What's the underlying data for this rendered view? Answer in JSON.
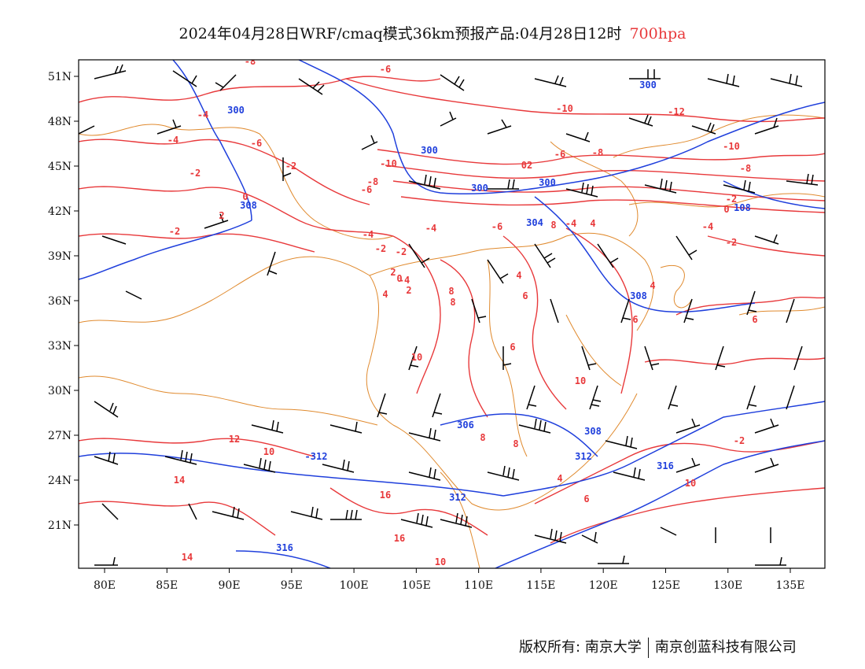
{
  "title": {
    "main": "2024年04月28日WRF/cmaq模式36km预报产品:04月28日12时",
    "level": "700hpa"
  },
  "axes": {
    "lon_labels": [
      "80E",
      "85E",
      "90E",
      "95E",
      "100E",
      "105E",
      "110E",
      "115E",
      "120E",
      "125E",
      "130E",
      "135E"
    ],
    "lat_labels": [
      "51N",
      "48N",
      "45N",
      "42N",
      "39N",
      "36N",
      "33N",
      "30N",
      "27N",
      "24N",
      "21N"
    ]
  },
  "colors": {
    "temperature": "#e8393b",
    "height": "#1f3fdc",
    "border": "#e08a2e",
    "wind": "#000000"
  },
  "height_labels": [
    "300",
    "300",
    "300",
    "300",
    "300",
    "304",
    "308",
    "308",
    "306",
    "308",
    "-312",
    "312",
    "312",
    "316",
    "316",
    "108"
  ],
  "temp_labels": [
    "-8",
    "-6",
    "-4",
    "-4",
    "-6",
    "-2",
    "-2",
    "0",
    "2",
    "-2",
    "-4",
    "-2",
    "-6",
    "-8",
    "-10",
    "-10",
    "-12",
    "-10",
    "-8",
    "02",
    "-6",
    "-8",
    "-2",
    "-4",
    "-6",
    "-4",
    "-2",
    "0",
    "2",
    "-4",
    "-2",
    "0",
    "2",
    "4",
    "4",
    "8",
    "8",
    "6",
    "6",
    "4",
    "6",
    "10",
    "12",
    "10",
    "14",
    "16",
    "16",
    "14",
    "10",
    "8",
    "8",
    "10",
    "4",
    "6",
    "6",
    "10",
    "-2",
    "-4",
    "4",
    "8"
  ],
  "footer": {
    "left": "版权所有: 南京大学",
    "right": "南京创蓝科技有限公司"
  }
}
